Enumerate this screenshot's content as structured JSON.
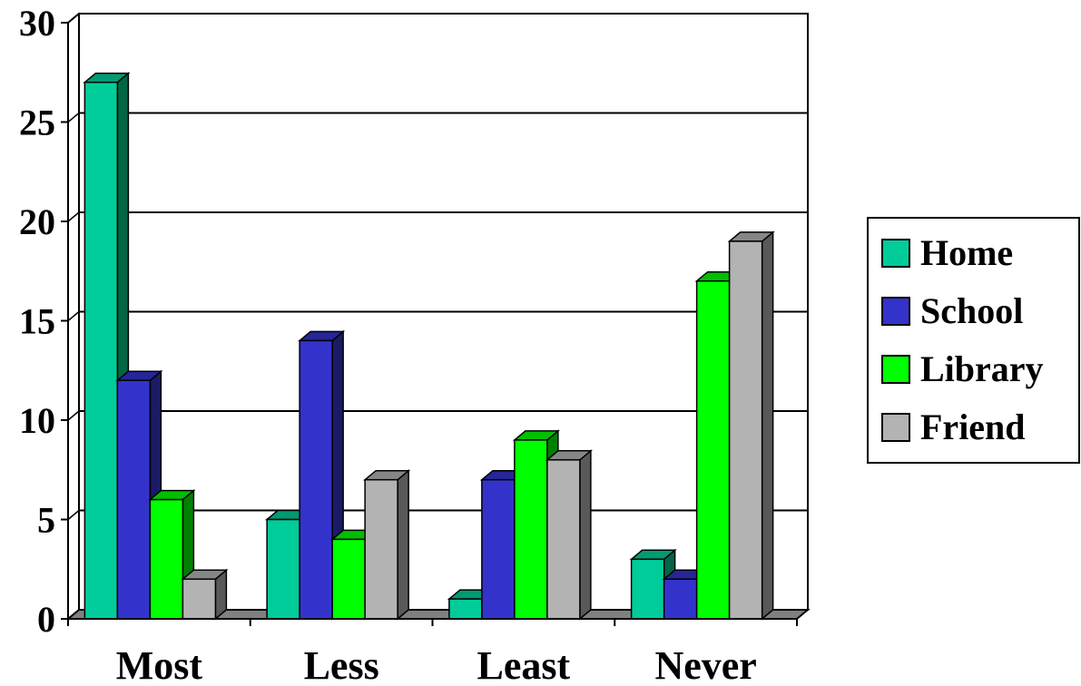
{
  "chart_data": {
    "type": "bar",
    "title": "",
    "xlabel": "",
    "ylabel": "",
    "categories": [
      "Most",
      "Less",
      "Least",
      "Never"
    ],
    "ylim": [
      0,
      30
    ],
    "yticks": [
      0,
      5,
      10,
      15,
      20,
      25,
      30
    ],
    "grid": true,
    "legend_position": "right",
    "style": "3d-column",
    "series": [
      {
        "name": "Home",
        "values": [
          27,
          5,
          1,
          3
        ],
        "color": "#00cc99",
        "side_color": "#006644",
        "top_color": "#009a73"
      },
      {
        "name": "School",
        "values": [
          12,
          14,
          7,
          2
        ],
        "color": "#3333cc",
        "side_color": "#1a1a66",
        "top_color": "#262699"
      },
      {
        "name": "Library",
        "values": [
          6,
          4,
          9,
          17
        ],
        "color": "#00ff00",
        "side_color": "#008000",
        "top_color": "#00bf00"
      },
      {
        "name": "Friend",
        "values": [
          2,
          7,
          8,
          19
        ],
        "color": "#b3b3b3",
        "side_color": "#595959",
        "top_color": "#868686"
      }
    ]
  }
}
